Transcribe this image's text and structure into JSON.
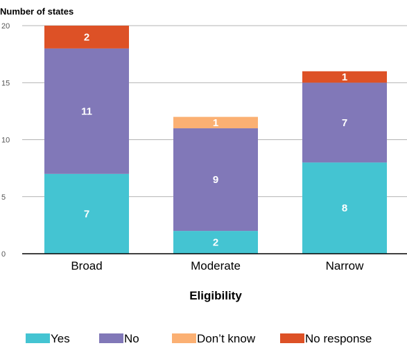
{
  "chart_data": {
    "type": "bar",
    "stacked": true,
    "ylabel": "Number of states",
    "xlabel": "Eligibility",
    "ylim": [
      0,
      20
    ],
    "yticks": [
      0,
      5,
      10,
      15,
      20
    ],
    "grid": true,
    "legend_position": "bottom",
    "categories": [
      "Broad",
      "Moderate",
      "Narrow"
    ],
    "series": [
      {
        "name": "Yes",
        "color": "#44c4d2",
        "values": [
          7,
          2,
          8
        ]
      },
      {
        "name": "No",
        "color": "#8178b8",
        "values": [
          11,
          9,
          7
        ]
      },
      {
        "name": "Don’t know",
        "color": "#fbb073",
        "values": [
          0,
          1,
          0
        ]
      },
      {
        "name": "No response",
        "color": "#dd5126",
        "values": [
          2,
          0,
          1
        ]
      }
    ]
  }
}
